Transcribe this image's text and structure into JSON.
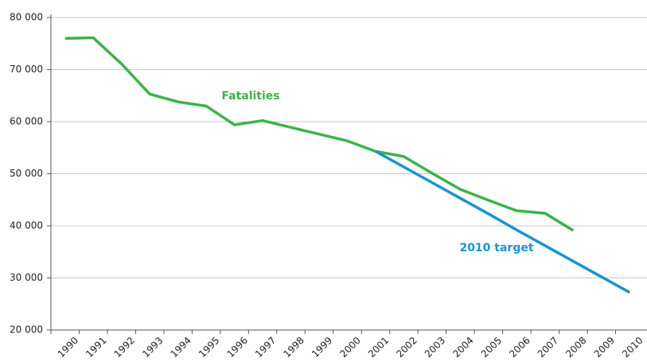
{
  "chart_data": {
    "type": "line",
    "categories": [
      "1990",
      "1991",
      "1992",
      "1993",
      "1994",
      "1995",
      "1996",
      "1997",
      "1998",
      "1999",
      "2000",
      "2001",
      "2002",
      "2003",
      "2004",
      "2005",
      "2006",
      "2007",
      "2008",
      "2009",
      "2010"
    ],
    "series": [
      {
        "name": "Fatalities",
        "color": "#3db249",
        "values": [
          76000,
          76100,
          71100,
          65300,
          63800,
          63000,
          59400,
          60200,
          58900,
          57600,
          56300,
          54300,
          53300,
          50100,
          47000,
          44900,
          42900,
          42400,
          39100,
          null,
          null
        ]
      },
      {
        "name": "2010 target",
        "color": "#1b93cf",
        "values": [
          null,
          null,
          null,
          null,
          null,
          null,
          null,
          null,
          null,
          null,
          null,
          54300,
          51300,
          48300,
          45300,
          42300,
          39200,
          36200,
          33200,
          30200,
          27200
        ]
      }
    ],
    "ylim": [
      20000,
      80000
    ],
    "yticks": [
      {
        "value": 20000,
        "label": "20 000"
      },
      {
        "value": 30000,
        "label": "30 000"
      },
      {
        "value": 40000,
        "label": "40 000"
      },
      {
        "value": 50000,
        "label": "50 000"
      },
      {
        "value": 60000,
        "label": "60 000"
      },
      {
        "value": 70000,
        "label": "70 000"
      },
      {
        "value": 80000,
        "label": "80 000"
      }
    ],
    "grid": true
  }
}
